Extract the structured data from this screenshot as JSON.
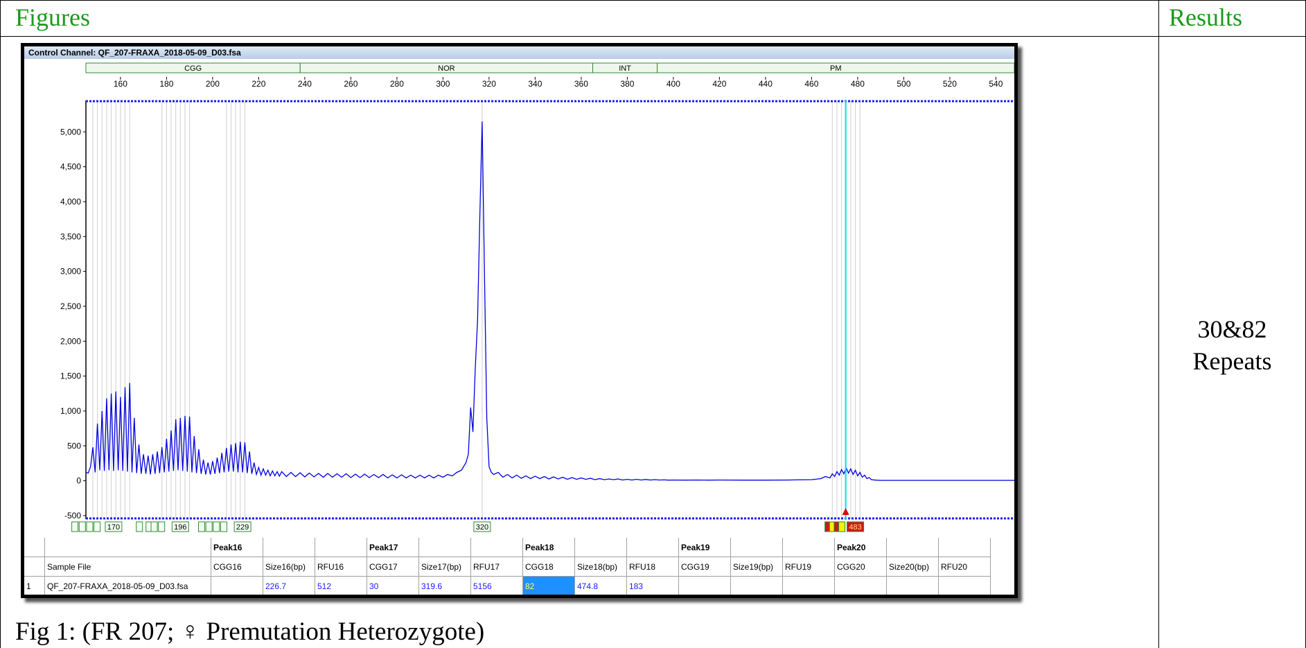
{
  "header": {
    "figures_label": "Figures",
    "results_label": "Results"
  },
  "result": {
    "line1": "30&82",
    "line2": "Repeats"
  },
  "caption": "Fig 1: (FR 207; ♀ Premutation Heterozygote)",
  "window": {
    "title": "Control Channel: QF_207-FRAXA_2018-05-09_D03.fsa"
  },
  "regions": [
    {
      "label": "CGG",
      "from": 145,
      "to": 238
    },
    {
      "label": "NOR",
      "from": 238,
      "to": 365
    },
    {
      "label": "INT",
      "from": 365,
      "to": 393
    },
    {
      "label": "PM",
      "from": 393,
      "to": 560
    }
  ],
  "chart_data": {
    "type": "line",
    "title": "",
    "xlabel": "",
    "ylabel": "",
    "xlim": [
      145,
      548
    ],
    "ylim": [
      -550,
      5450
    ],
    "x_ticks": [
      160,
      180,
      200,
      220,
      240,
      260,
      280,
      300,
      320,
      340,
      360,
      380,
      400,
      420,
      440,
      460,
      480,
      500,
      520,
      540
    ],
    "y_ticks": [
      5000,
      4500,
      4000,
      3500,
      3000,
      2500,
      2000,
      1500,
      1000,
      500,
      0,
      -500
    ],
    "y_tick_labels": [
      "5,000",
      "4,500",
      "4,000",
      "3,500",
      "3,000",
      "2,500",
      "2,000",
      "1,500",
      "1,000",
      "500",
      "0",
      "-500"
    ],
    "trace_color": "#0000e0",
    "cursor_x": 474.8,
    "series": [
      {
        "points": [
          [
            145,
            120
          ],
          [
            146,
            110
          ],
          [
            147,
            200
          ],
          [
            148,
            480
          ],
          [
            149,
            120
          ],
          [
            150,
            820
          ],
          [
            151,
            150
          ],
          [
            152,
            1000
          ],
          [
            153,
            140
          ],
          [
            154,
            1180
          ],
          [
            155,
            150
          ],
          [
            156,
            1250
          ],
          [
            157,
            140
          ],
          [
            158,
            1280
          ],
          [
            159,
            150
          ],
          [
            160,
            1200
          ],
          [
            161,
            140
          ],
          [
            162,
            1340
          ],
          [
            163,
            130
          ],
          [
            164,
            1400
          ],
          [
            165,
            120
          ],
          [
            166,
            900
          ],
          [
            167,
            110
          ],
          [
            168,
            520
          ],
          [
            169,
            100
          ],
          [
            170,
            380
          ],
          [
            171,
            100
          ],
          [
            172,
            360
          ],
          [
            173,
            90
          ],
          [
            174,
            380
          ],
          [
            175,
            100
          ],
          [
            176,
            420
          ],
          [
            177,
            110
          ],
          [
            178,
            480
          ],
          [
            179,
            120
          ],
          [
            180,
            600
          ],
          [
            181,
            130
          ],
          [
            182,
            720
          ],
          [
            183,
            140
          ],
          [
            184,
            880
          ],
          [
            185,
            150
          ],
          [
            186,
            900
          ],
          [
            187,
            140
          ],
          [
            188,
            930
          ],
          [
            189,
            130
          ],
          [
            190,
            920
          ],
          [
            191,
            120
          ],
          [
            192,
            640
          ],
          [
            193,
            110
          ],
          [
            194,
            450
          ],
          [
            195,
            100
          ],
          [
            196,
            300
          ],
          [
            197,
            90
          ],
          [
            198,
            260
          ],
          [
            199,
            90
          ],
          [
            200,
            280
          ],
          [
            201,
            100
          ],
          [
            202,
            330
          ],
          [
            203,
            110
          ],
          [
            204,
            400
          ],
          [
            205,
            120
          ],
          [
            206,
            470
          ],
          [
            207,
            130
          ],
          [
            208,
            520
          ],
          [
            209,
            130
          ],
          [
            210,
            540
          ],
          [
            211,
            120
          ],
          [
            212,
            560
          ],
          [
            213,
            120
          ],
          [
            214,
            550
          ],
          [
            215,
            110
          ],
          [
            216,
            420
          ],
          [
            217,
            100
          ],
          [
            218,
            260
          ],
          [
            219,
            90
          ],
          [
            220,
            190
          ],
          [
            221,
            80
          ],
          [
            222,
            170
          ],
          [
            223,
            80
          ],
          [
            224,
            150
          ],
          [
            225,
            70
          ],
          [
            226,
            140
          ],
          [
            227,
            70
          ],
          [
            228,
            130
          ],
          [
            229,
            65
          ],
          [
            230,
            130
          ],
          [
            232,
            60
          ],
          [
            234,
            120
          ],
          [
            236,
            60
          ],
          [
            238,
            115
          ],
          [
            240,
            55
          ],
          [
            242,
            110
          ],
          [
            244,
            55
          ],
          [
            246,
            105
          ],
          [
            248,
            50
          ],
          [
            250,
            105
          ],
          [
            252,
            50
          ],
          [
            254,
            100
          ],
          [
            256,
            50
          ],
          [
            258,
            100
          ],
          [
            260,
            45
          ],
          [
            262,
            95
          ],
          [
            264,
            45
          ],
          [
            266,
            95
          ],
          [
            268,
            45
          ],
          [
            270,
            90
          ],
          [
            272,
            45
          ],
          [
            274,
            90
          ],
          [
            276,
            40
          ],
          [
            278,
            85
          ],
          [
            280,
            40
          ],
          [
            282,
            85
          ],
          [
            284,
            40
          ],
          [
            286,
            80
          ],
          [
            288,
            40
          ],
          [
            290,
            80
          ],
          [
            292,
            40
          ],
          [
            294,
            80
          ],
          [
            296,
            40
          ],
          [
            298,
            80
          ],
          [
            300,
            50
          ],
          [
            302,
            90
          ],
          [
            304,
            70
          ],
          [
            306,
            120
          ],
          [
            308,
            150
          ],
          [
            310,
            260
          ],
          [
            311,
            380
          ],
          [
            312,
            1050
          ],
          [
            313,
            700
          ],
          [
            314,
            1600
          ],
          [
            315,
            2300
          ],
          [
            316,
            3800
          ],
          [
            317,
            5150
          ],
          [
            318,
            3000
          ],
          [
            319,
            900
          ],
          [
            320,
            200
          ],
          [
            321,
            120
          ],
          [
            322,
            90
          ],
          [
            324,
            120
          ],
          [
            326,
            50
          ],
          [
            328,
            90
          ],
          [
            330,
            40
          ],
          [
            332,
            80
          ],
          [
            334,
            35
          ],
          [
            336,
            70
          ],
          [
            338,
            30
          ],
          [
            340,
            65
          ],
          [
            342,
            30
          ],
          [
            344,
            60
          ],
          [
            346,
            25
          ],
          [
            348,
            55
          ],
          [
            350,
            25
          ],
          [
            352,
            50
          ],
          [
            354,
            20
          ],
          [
            356,
            45
          ],
          [
            358,
            20
          ],
          [
            360,
            40
          ],
          [
            362,
            20
          ],
          [
            364,
            35
          ],
          [
            366,
            15
          ],
          [
            368,
            30
          ],
          [
            370,
            15
          ],
          [
            372,
            25
          ],
          [
            374,
            15
          ],
          [
            376,
            25
          ],
          [
            378,
            10
          ],
          [
            380,
            20
          ],
          [
            382,
            10
          ],
          [
            384,
            20
          ],
          [
            386,
            10
          ],
          [
            388,
            18
          ],
          [
            390,
            10
          ],
          [
            392,
            15
          ],
          [
            394,
            10
          ],
          [
            396,
            12
          ],
          [
            398,
            8
          ],
          [
            400,
            10
          ],
          [
            405,
            8
          ],
          [
            410,
            10
          ],
          [
            415,
            8
          ],
          [
            420,
            10
          ],
          [
            430,
            8
          ],
          [
            440,
            8
          ],
          [
            450,
            10
          ],
          [
            460,
            15
          ],
          [
            464,
            30
          ],
          [
            466,
            60
          ],
          [
            468,
            40
          ],
          [
            469,
            100
          ],
          [
            470,
            60
          ],
          [
            471,
            130
          ],
          [
            472,
            80
          ],
          [
            473,
            160
          ],
          [
            474,
            100
          ],
          [
            475,
            183
          ],
          [
            476,
            110
          ],
          [
            477,
            170
          ],
          [
            478,
            90
          ],
          [
            479,
            150
          ],
          [
            480,
            70
          ],
          [
            481,
            120
          ],
          [
            482,
            50
          ],
          [
            483,
            80
          ],
          [
            484,
            30
          ],
          [
            485,
            45
          ],
          [
            486,
            15
          ],
          [
            488,
            8
          ],
          [
            490,
            5
          ],
          [
            500,
            5
          ],
          [
            520,
            5
          ],
          [
            548,
            5
          ]
        ]
      }
    ],
    "peak_labels": [
      {
        "x": 157,
        "text": "170"
      },
      {
        "x": 186,
        "text": "196"
      },
      {
        "x": 213,
        "text": "229"
      },
      {
        "x": 317,
        "text": "320"
      },
      {
        "x": 479,
        "text": "483"
      }
    ]
  },
  "grid": {
    "peak_headers": [
      "Peak16",
      "Peak17",
      "Peak18",
      "Peak19",
      "Peak20"
    ],
    "col_headers": [
      "Sample File",
      "CGG16",
      "Size16(bp)",
      "RFU16",
      "CGG17",
      "Size17(bp)",
      "RFU17",
      "CGG18",
      "Size18(bp)",
      "RFU18",
      "CGG19",
      "Size19(bp)",
      "RFU19",
      "CGG20",
      "Size20(bp)",
      "RFU20"
    ],
    "row_index": "1",
    "row_values": [
      "QF_207-FRAXA_2018-05-09_D03.fsa",
      "",
      "226.7",
      "512",
      "30",
      "319.6",
      "5156",
      "82",
      "474.8",
      "183",
      "",
      "",
      "",
      "",
      "",
      ""
    ]
  }
}
